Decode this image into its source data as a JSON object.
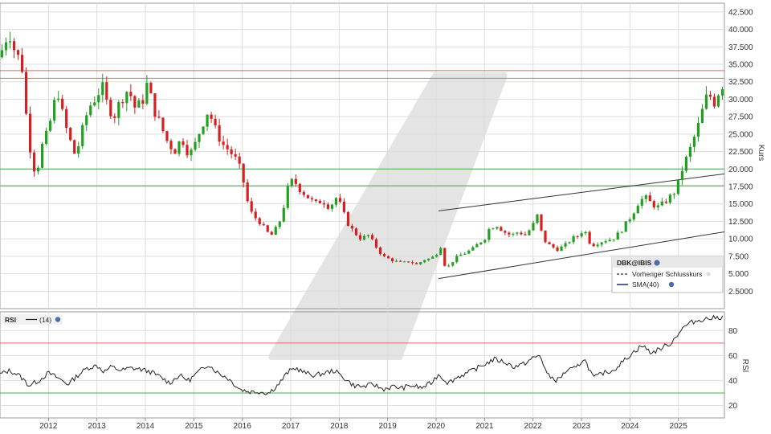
{
  "chart_data": [
    {
      "type": "candlestick",
      "symbol": "DBK@IBIS",
      "ylabel": "Kurs",
      "ylim": [
        0,
        43750
      ],
      "y_ticks": [
        "2.5000",
        "5.000",
        "7.500",
        "10.000",
        "12.500",
        "15.000",
        "17.500",
        "20.000",
        "22.500",
        "25.000",
        "27.500",
        "30.000",
        "32.500",
        "35.000",
        "37.500",
        "40.000",
        "42.500"
      ],
      "y_tick_values": [
        2500,
        5000,
        7500,
        10000,
        12500,
        15000,
        17500,
        20000,
        22500,
        25000,
        27500,
        30000,
        32500,
        35000,
        37500,
        40000,
        42500
      ],
      "x_range": [
        2011.0,
        2025.95
      ],
      "x_ticks": [
        "2012",
        "2013",
        "2014",
        "2015",
        "2016",
        "2017",
        "2018",
        "2019",
        "2020",
        "2021",
        "2022",
        "2023",
        "2024",
        "2025"
      ],
      "x_tick_values": [
        2012,
        2013,
        2014,
        2015,
        2016,
        2017,
        2018,
        2019,
        2020,
        2021,
        2022,
        2023,
        2024,
        2025
      ],
      "grid": true,
      "legend": {
        "title": "DBK@IBIS",
        "items": [
          "Vorheriger Schlusskurs",
          "SMA(40)"
        ],
        "placement": "bottom-right"
      },
      "horizontal_lines": [
        {
          "value": 34100,
          "color": "#e06666"
        },
        {
          "value": 33000,
          "color": "#e06666"
        },
        {
          "value": 20000,
          "color": "#4ea84e"
        },
        {
          "value": 17600,
          "color": "#4ea84e"
        }
      ],
      "trend_lines": [
        {
          "from": [
            2020.05,
            14000
          ],
          "to": [
            2025.95,
            19300
          ],
          "color": "#333333"
        },
        {
          "from": [
            2020.05,
            4300
          ],
          "to": [
            2025.95,
            11000
          ],
          "color": "#333333"
        }
      ],
      "close_path": [
        [
          2011.0,
          36000
        ],
        [
          2011.1,
          38500
        ],
        [
          2011.2,
          39500
        ],
        [
          2011.3,
          37000
        ],
        [
          2011.45,
          35000
        ],
        [
          2011.55,
          27000
        ],
        [
          2011.65,
          21500
        ],
        [
          2011.75,
          19000
        ],
        [
          2011.85,
          23000
        ],
        [
          2012.0,
          25500
        ],
        [
          2012.1,
          29000
        ],
        [
          2012.2,
          31000
        ],
        [
          2012.3,
          27500
        ],
        [
          2012.4,
          25000
        ],
        [
          2012.55,
          22000
        ],
        [
          2012.65,
          24000
        ],
        [
          2012.75,
          27000
        ],
        [
          2012.85,
          29000
        ],
        [
          2013.0,
          30500
        ],
        [
          2013.1,
          32000
        ],
        [
          2013.2,
          29500
        ],
        [
          2013.35,
          27500
        ],
        [
          2013.5,
          30000
        ],
        [
          2013.65,
          31500
        ],
        [
          2013.8,
          28500
        ],
        [
          2013.95,
          30000
        ],
        [
          2014.05,
          32500
        ],
        [
          2014.15,
          29000
        ],
        [
          2014.3,
          26500
        ],
        [
          2014.45,
          24000
        ],
        [
          2014.6,
          22500
        ],
        [
          2014.75,
          24500
        ],
        [
          2014.9,
          22000
        ],
        [
          2015.0,
          23000
        ],
        [
          2015.15,
          26000
        ],
        [
          2015.3,
          28500
        ],
        [
          2015.45,
          25500
        ],
        [
          2015.6,
          23500
        ],
        [
          2015.75,
          22500
        ],
        [
          2015.9,
          21000
        ],
        [
          2016.0,
          19000
        ],
        [
          2016.1,
          15500
        ],
        [
          2016.2,
          13500
        ],
        [
          2016.35,
          12500
        ],
        [
          2016.5,
          11000
        ],
        [
          2016.6,
          10500
        ],
        [
          2016.75,
          12000
        ],
        [
          2016.85,
          14500
        ],
        [
          2016.95,
          17500
        ],
        [
          2017.05,
          18500
        ],
        [
          2017.2,
          17000
        ],
        [
          2017.35,
          16000
        ],
        [
          2017.5,
          15000
        ],
        [
          2017.65,
          15500
        ],
        [
          2017.8,
          14500
        ],
        [
          2017.95,
          16000
        ],
        [
          2018.05,
          14500
        ],
        [
          2018.15,
          12500
        ],
        [
          2018.3,
          11000
        ],
        [
          2018.45,
          10000
        ],
        [
          2018.6,
          10500
        ],
        [
          2018.75,
          9000
        ],
        [
          2018.9,
          7500
        ],
        [
          2019.0,
          7200
        ],
        [
          2019.15,
          6800
        ],
        [
          2019.3,
          6500
        ],
        [
          2019.45,
          6800
        ],
        [
          2019.6,
          6300
        ],
        [
          2019.75,
          7000
        ],
        [
          2019.9,
          7200
        ],
        [
          2020.0,
          7800
        ],
        [
          2020.1,
          9000
        ],
        [
          2020.2,
          5500
        ],
        [
          2020.3,
          6500
        ],
        [
          2020.45,
          7500
        ],
        [
          2020.6,
          8000
        ],
        [
          2020.75,
          8500
        ],
        [
          2020.9,
          9500
        ],
        [
          2021.0,
          10000
        ],
        [
          2021.1,
          11500
        ],
        [
          2021.25,
          12000
        ],
        [
          2021.4,
          11000
        ],
        [
          2021.55,
          10500
        ],
        [
          2021.7,
          11000
        ],
        [
          2021.85,
          10500
        ],
        [
          2022.0,
          12000
        ],
        [
          2022.1,
          13500
        ],
        [
          2022.2,
          10000
        ],
        [
          2022.35,
          9000
        ],
        [
          2022.5,
          8500
        ],
        [
          2022.65,
          9000
        ],
        [
          2022.8,
          10000
        ],
        [
          2022.95,
          10500
        ],
        [
          2023.05,
          11500
        ],
        [
          2023.2,
          9000
        ],
        [
          2023.35,
          9500
        ],
        [
          2023.5,
          9800
        ],
        [
          2023.65,
          10000
        ],
        [
          2023.8,
          11000
        ],
        [
          2023.95,
          12500
        ],
        [
          2024.05,
          13500
        ],
        [
          2024.15,
          15000
        ],
        [
          2024.3,
          16000
        ],
        [
          2024.45,
          15000
        ],
        [
          2024.6,
          14500
        ],
        [
          2024.75,
          15500
        ],
        [
          2024.9,
          16500
        ],
        [
          2025.0,
          18000
        ],
        [
          2025.1,
          20500
        ],
        [
          2025.2,
          22000
        ],
        [
          2025.3,
          24000
        ],
        [
          2025.45,
          27000
        ],
        [
          2025.55,
          30000
        ],
        [
          2025.65,
          30500
        ],
        [
          2025.75,
          29500
        ],
        [
          2025.85,
          31500
        ],
        [
          2025.95,
          32500
        ]
      ]
    },
    {
      "type": "line",
      "series": [
        {
          "name": "RSI",
          "label": "(14)"
        }
      ],
      "ylim": [
        10,
        95
      ],
      "y_ticks": [
        "20",
        "40",
        "60",
        "80"
      ],
      "y_tick_values": [
        20,
        40,
        60,
        80
      ],
      "ylabel": "RSI",
      "horizontal_lines": [
        {
          "value": 70,
          "color": "#e06666"
        },
        {
          "value": 30,
          "color": "#4ea84e"
        }
      ],
      "x_range": [
        2011.0,
        2025.95
      ],
      "rsi_path": [
        [
          2011.0,
          45
        ],
        [
          2011.2,
          48
        ],
        [
          2011.4,
          44
        ],
        [
          2011.6,
          36
        ],
        [
          2011.8,
          40
        ],
        [
          2012.0,
          46
        ],
        [
          2012.2,
          42
        ],
        [
          2012.4,
          37
        ],
        [
          2012.6,
          44
        ],
        [
          2012.8,
          50
        ],
        [
          2013.0,
          52
        ],
        [
          2013.15,
          47
        ],
        [
          2013.3,
          51
        ],
        [
          2013.5,
          48
        ],
        [
          2013.7,
          50
        ],
        [
          2013.9,
          49
        ],
        [
          2014.1,
          47
        ],
        [
          2014.3,
          43
        ],
        [
          2014.5,
          38
        ],
        [
          2014.7,
          44
        ],
        [
          2014.9,
          40
        ],
        [
          2015.1,
          47
        ],
        [
          2015.3,
          53
        ],
        [
          2015.5,
          46
        ],
        [
          2015.7,
          42
        ],
        [
          2015.95,
          33
        ],
        [
          2016.15,
          31
        ],
        [
          2016.35,
          31
        ],
        [
          2016.55,
          30
        ],
        [
          2016.75,
          37
        ],
        [
          2016.95,
          47
        ],
        [
          2017.1,
          50
        ],
        [
          2017.3,
          46
        ],
        [
          2017.5,
          44
        ],
        [
          2017.7,
          46
        ],
        [
          2017.9,
          48
        ],
        [
          2018.1,
          42
        ],
        [
          2018.3,
          36
        ],
        [
          2018.5,
          35
        ],
        [
          2018.7,
          37
        ],
        [
          2018.9,
          33
        ],
        [
          2019.1,
          35
        ],
        [
          2019.3,
          34
        ],
        [
          2019.5,
          36
        ],
        [
          2019.7,
          34
        ],
        [
          2019.9,
          38
        ],
        [
          2020.05,
          45
        ],
        [
          2020.25,
          38
        ],
        [
          2020.45,
          43
        ],
        [
          2020.65,
          46
        ],
        [
          2020.85,
          50
        ],
        [
          2021.0,
          53
        ],
        [
          2021.2,
          57
        ],
        [
          2021.4,
          55
        ],
        [
          2021.6,
          51
        ],
        [
          2021.8,
          53
        ],
        [
          2022.0,
          58
        ],
        [
          2022.15,
          60
        ],
        [
          2022.3,
          44
        ],
        [
          2022.5,
          40
        ],
        [
          2022.7,
          48
        ],
        [
          2022.9,
          50
        ],
        [
          2023.05,
          58
        ],
        [
          2023.25,
          42
        ],
        [
          2023.45,
          46
        ],
        [
          2023.65,
          48
        ],
        [
          2023.85,
          55
        ],
        [
          2024.05,
          62
        ],
        [
          2024.25,
          68
        ],
        [
          2024.45,
          62
        ],
        [
          2024.65,
          66
        ],
        [
          2024.85,
          70
        ],
        [
          2025.0,
          78
        ],
        [
          2025.15,
          84
        ],
        [
          2025.3,
          87
        ],
        [
          2025.5,
          89
        ],
        [
          2025.7,
          90
        ],
        [
          2025.95,
          91
        ]
      ]
    }
  ]
}
